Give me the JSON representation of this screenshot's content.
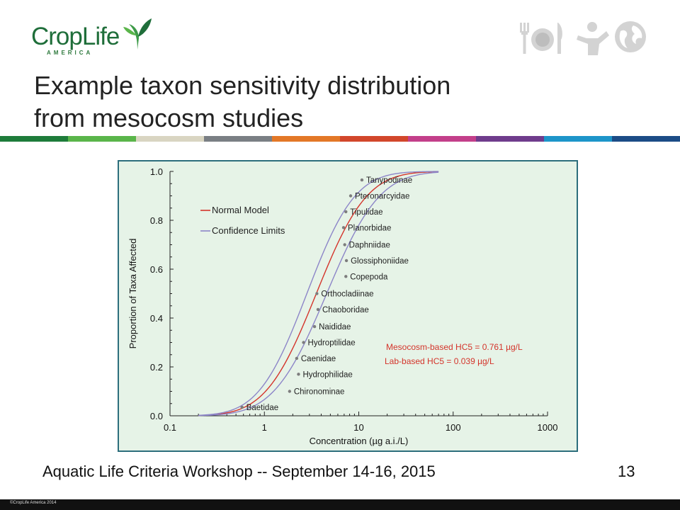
{
  "header": {
    "logo_text": "CropLife",
    "logo_subtext": "AMERICA",
    "title_line1": "Example taxon sensitivity distribution",
    "title_line2": "from mesocosm studies",
    "icons": [
      "fork-plate-knife-icon",
      "person-icon",
      "globe-icon"
    ]
  },
  "stripe_colors": [
    "#1e7c3a",
    "#5ab54a",
    "#d9d5c2",
    "#7a7f84",
    "#e37827",
    "#d2472b",
    "#c33f8a",
    "#6f3c8c",
    "#1d95c9",
    "#1c4c86"
  ],
  "chart_data": {
    "type": "scatter",
    "xlabel": "Concentration (µg a.i./L)",
    "ylabel": "Proportion of Taxa Affected",
    "x_scale": "log",
    "xlim": [
      0.1,
      1000
    ],
    "ylim": [
      0.0,
      1.0
    ],
    "x_ticks": [
      "0.1",
      "1",
      "10",
      "100",
      "1000"
    ],
    "y_ticks": [
      "0.0",
      "0.2",
      "0.4",
      "0.6",
      "0.8",
      "1.0"
    ],
    "legend": {
      "placement": "upper-left",
      "entries": [
        {
          "label": "Normal Model",
          "color": "#d4342b"
        },
        {
          "label": "Confidence Limits",
          "color": "#8c85c8"
        }
      ]
    },
    "series": [
      {
        "name": "Normal Model",
        "color": "#d4342b",
        "mu_log10": 0.55,
        "sigma_log10": 0.42
      },
      {
        "name": "Confidence Limits",
        "color": "#8c85c8",
        "mu_log10": 0.45,
        "sigma_log10": 0.4
      },
      {
        "name": "Confidence Limits",
        "color": "#8c85c8",
        "mu_log10": 0.66,
        "sigma_log10": 0.44
      }
    ],
    "points": [
      {
        "label": "Baetidae",
        "x": 0.58,
        "y": 0.035
      },
      {
        "label": "Chironominae",
        "x": 1.85,
        "y": 0.1
      },
      {
        "label": "Hydrophilidae",
        "x": 2.3,
        "y": 0.17
      },
      {
        "label": "Caenidae",
        "x": 2.2,
        "y": 0.235
      },
      {
        "label": "Hydroptilidae",
        "x": 2.6,
        "y": 0.3
      },
      {
        "label": "Naididae",
        "x": 3.4,
        "y": 0.365
      },
      {
        "label": "Chaoboridae",
        "x": 3.7,
        "y": 0.435
      },
      {
        "label": "Orthocladiinae",
        "x": 3.6,
        "y": 0.5
      },
      {
        "label": "Copepoda",
        "x": 7.3,
        "y": 0.57
      },
      {
        "label": "Glossiphoniidae",
        "x": 7.4,
        "y": 0.635
      },
      {
        "label": "Daphniidae",
        "x": 7.1,
        "y": 0.7
      },
      {
        "label": "Planorbidae",
        "x": 6.9,
        "y": 0.77
      },
      {
        "label": "Tipulidae",
        "x": 7.3,
        "y": 0.835
      },
      {
        "label": "Pteronarcyidae",
        "x": 8.2,
        "y": 0.9
      },
      {
        "label": "Tanypodinae",
        "x": 10.8,
        "y": 0.965
      }
    ],
    "annotations": [
      {
        "text": "Mesocosm-based HC5 = 0.761 µg/L",
        "color": "#d4342b"
      },
      {
        "text": "Lab-based HC5 = 0.039 µg/L",
        "color": "#d4342b"
      }
    ]
  },
  "footer": {
    "text": "Aquatic Life Criteria Workshop -- September 14-16, 2015",
    "page_number": "13",
    "copyright": "©CropLife America 2014"
  }
}
